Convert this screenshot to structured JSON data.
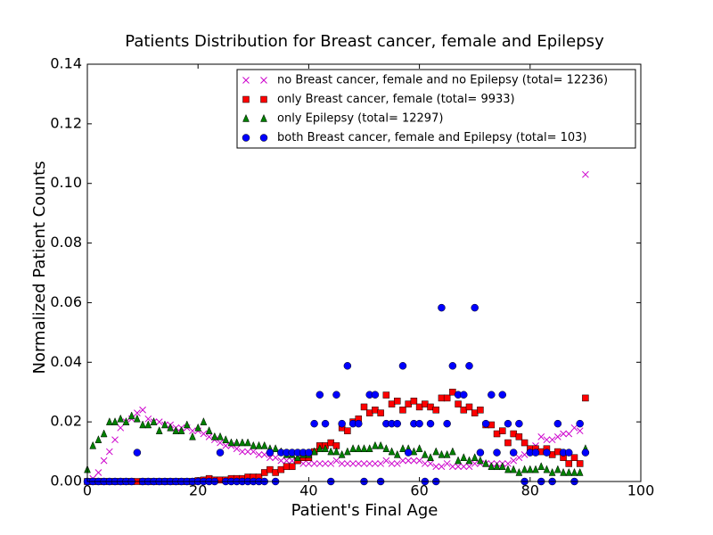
{
  "chart_data": {
    "type": "scatter",
    "title": "Patients Distribution for Breast cancer, female and Epilepsy",
    "x_label": "Patient's Final Age",
    "y_label": "Normalized Patient Counts",
    "xlim": [
      0,
      100
    ],
    "ylim": [
      0,
      0.14
    ],
    "xticks": [
      0,
      20,
      40,
      60,
      80,
      100
    ],
    "yticks": [
      {
        "value": 0,
        "label": "0.00"
      },
      {
        "value": 0.02,
        "label": "0.02"
      },
      {
        "value": 0.04,
        "label": "0.04"
      },
      {
        "value": 0.06,
        "label": "0.06"
      },
      {
        "value": 0.08,
        "label": "0.08"
      },
      {
        "value": 0.1,
        "label": "0.10"
      },
      {
        "value": 0.12,
        "label": "0.12"
      },
      {
        "value": 0.14,
        "label": "0.14"
      }
    ],
    "legend": "upper right",
    "x": [
      0,
      1,
      2,
      3,
      4,
      5,
      6,
      7,
      8,
      9,
      10,
      11,
      12,
      13,
      14,
      15,
      16,
      17,
      18,
      19,
      20,
      21,
      22,
      23,
      24,
      25,
      26,
      27,
      28,
      29,
      30,
      31,
      32,
      33,
      34,
      35,
      36,
      37,
      38,
      39,
      40,
      41,
      42,
      43,
      44,
      45,
      46,
      47,
      48,
      49,
      50,
      51,
      52,
      53,
      54,
      55,
      56,
      57,
      58,
      59,
      60,
      61,
      62,
      63,
      64,
      65,
      66,
      67,
      68,
      69,
      70,
      71,
      72,
      73,
      74,
      75,
      76,
      77,
      78,
      79,
      80,
      81,
      82,
      83,
      84,
      85,
      86,
      87,
      88,
      89,
      90
    ],
    "series": [
      {
        "name": "no Breast cancer, female and no Epilepsy (total= 12236)",
        "color": "#cc00cc",
        "marker": "x",
        "values": [
          0,
          0.001,
          0.003,
          0.007,
          0.01,
          0.014,
          0.018,
          0.02,
          0.021,
          0.023,
          0.024,
          0.021,
          0.02,
          0.02,
          0.019,
          0.019,
          0.018,
          0.018,
          0.018,
          0.017,
          0.017,
          0.016,
          0.015,
          0.014,
          0.013,
          0.012,
          0.012,
          0.011,
          0.01,
          0.01,
          0.01,
          0.009,
          0.009,
          0.008,
          0.008,
          0.007,
          0.007,
          0.007,
          0.007,
          0.006,
          0.006,
          0.006,
          0.006,
          0.006,
          0.006,
          0.007,
          0.006,
          0.006,
          0.006,
          0.006,
          0.006,
          0.006,
          0.006,
          0.006,
          0.007,
          0.006,
          0.006,
          0.007,
          0.007,
          0.007,
          0.007,
          0.006,
          0.006,
          0.005,
          0.005,
          0.006,
          0.005,
          0.005,
          0.005,
          0.005,
          0.006,
          0.006,
          0.006,
          0.006,
          0.006,
          0.006,
          0.006,
          0.007,
          0.008,
          0.009,
          0.011,
          0.012,
          0.015,
          0.014,
          0.014,
          0.015,
          0.016,
          0.016,
          0.018,
          0.017,
          0.103
        ]
      },
      {
        "name": "only Breast cancer, female (total= 9933)",
        "color": "#ff0000",
        "marker": "s",
        "values": [
          0,
          0,
          0,
          0,
          0,
          0,
          0,
          0,
          0,
          0,
          0,
          0,
          0,
          0,
          0,
          0,
          0,
          0,
          0,
          0,
          0.0003,
          0.0005,
          0.001,
          0.0005,
          0.0005,
          0.0005,
          0.001,
          0.001,
          0.001,
          0.0015,
          0.0015,
          0.0015,
          0.003,
          0.004,
          0.003,
          0.004,
          0.005,
          0.005,
          0.007,
          0.008,
          0.008,
          0.01,
          0.012,
          0.012,
          0.013,
          0.012,
          0.018,
          0.017,
          0.02,
          0.021,
          0.025,
          0.023,
          0.024,
          0.023,
          0.029,
          0.026,
          0.027,
          0.024,
          0.026,
          0.027,
          0.025,
          0.026,
          0.025,
          0.024,
          0.028,
          0.028,
          0.03,
          0.026,
          0.024,
          0.025,
          0.023,
          0.024,
          0.019,
          0.019,
          0.016,
          0.017,
          0.013,
          0.016,
          0.015,
          0.013,
          0.011,
          0.011,
          0.01,
          0.011,
          0.009,
          0.01,
          0.008,
          0.006,
          0.008,
          0.006,
          0.028
        ]
      },
      {
        "name": "only Epilepsy (total= 12297)",
        "color": "#008000",
        "marker": "^",
        "values": [
          0.004,
          0.012,
          0.014,
          0.016,
          0.02,
          0.02,
          0.021,
          0.02,
          0.022,
          0.021,
          0.019,
          0.019,
          0.02,
          0.017,
          0.019,
          0.018,
          0.017,
          0.017,
          0.019,
          0.015,
          0.018,
          0.02,
          0.017,
          0.015,
          0.015,
          0.014,
          0.013,
          0.013,
          0.013,
          0.013,
          0.012,
          0.012,
          0.012,
          0.011,
          0.011,
          0.01,
          0.009,
          0.009,
          0.008,
          0.009,
          0.009,
          0.01,
          0.011,
          0.011,
          0.01,
          0.01,
          0.009,
          0.01,
          0.011,
          0.011,
          0.011,
          0.011,
          0.012,
          0.012,
          0.011,
          0.01,
          0.009,
          0.011,
          0.011,
          0.01,
          0.011,
          0.009,
          0.008,
          0.01,
          0.009,
          0.009,
          0.01,
          0.007,
          0.008,
          0.007,
          0.008,
          0.007,
          0.006,
          0.005,
          0.005,
          0.005,
          0.004,
          0.004,
          0.003,
          0.004,
          0.004,
          0.004,
          0.005,
          0.004,
          0.003,
          0.004,
          0.003,
          0.003,
          0.003,
          0.003,
          0.011
        ]
      },
      {
        "name": "both Breast cancer, female and Epilepsy (total= 103)",
        "color": "#0000ff",
        "marker": "o",
        "values": [
          0,
          0,
          0,
          0,
          0,
          0,
          0,
          0,
          0,
          0.0097,
          0,
          0,
          0,
          0,
          0,
          0,
          0,
          0,
          0,
          0,
          0,
          0,
          0,
          0,
          0.0097,
          0,
          0,
          0,
          0,
          0,
          0,
          0,
          0,
          0.0097,
          0,
          0.0097,
          0.0097,
          0.0097,
          0.0097,
          0.0097,
          0.0097,
          0.0194,
          0.0291,
          0.0194,
          0,
          0.0291,
          0.0194,
          0.0388,
          0.0194,
          0.0194,
          0,
          0.0291,
          0.0291,
          0,
          0.0194,
          0.0194,
          0.0194,
          0.0388,
          0.0097,
          0.0194,
          0.0194,
          0,
          0.0194,
          0,
          0.0583,
          0.0194,
          0.0388,
          0.0291,
          0.0291,
          0.0388,
          0.0583,
          0.0097,
          0.0194,
          0.0291,
          0.0097,
          0.0291,
          0.0194,
          0.0097,
          0.0194,
          0,
          0.0097,
          0.0097,
          0,
          0.0097,
          0,
          0.0194,
          0.0097,
          0.0097,
          0,
          0.0194,
          0.0097
        ]
      }
    ]
  }
}
